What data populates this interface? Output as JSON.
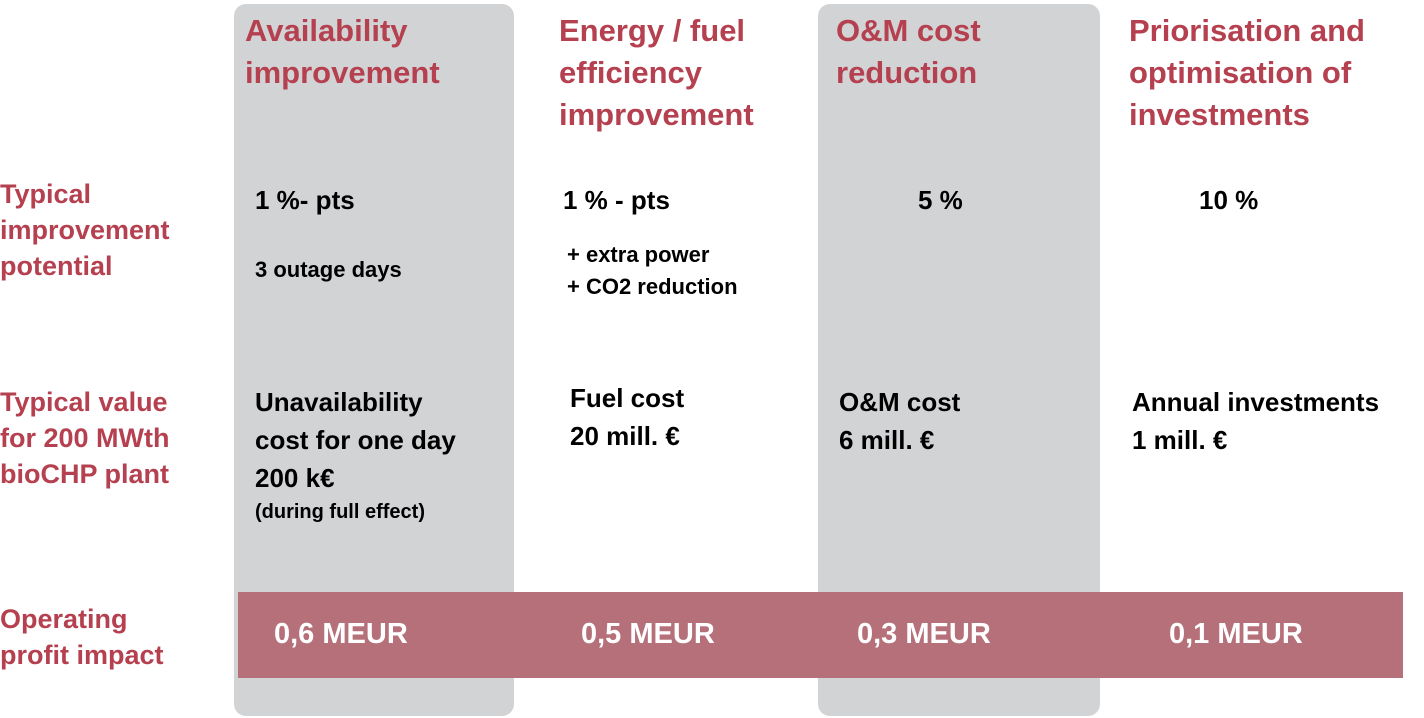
{
  "headers": [
    {
      "lines": [
        "Availability",
        "improvement"
      ]
    },
    {
      "lines": [
        "Energy / fuel",
        "efficiency",
        "improvement"
      ]
    },
    {
      "lines": [
        "O&M cost",
        "reduction"
      ]
    },
    {
      "lines": [
        "Priorisation and",
        "optimisation of",
        "investments"
      ]
    }
  ],
  "row_labels": {
    "potential": [
      "Typical",
      "improvement",
      "potential"
    ],
    "value": [
      "Typical value",
      "for 200 MWth",
      "bioCHP plant"
    ],
    "impact": [
      "Operating",
      "profit impact"
    ]
  },
  "potential": {
    "availability": {
      "main": "1 %- pts",
      "sub": "3 outage days"
    },
    "energy": {
      "main": "1 % - pts",
      "extras": [
        "+ extra power",
        "+ CO2 reduction"
      ]
    },
    "om": {
      "main": "5 %"
    },
    "investments": {
      "main": "10 %"
    }
  },
  "value": {
    "availability": {
      "lines": [
        "Unavailability",
        "cost for one day",
        "200 k€"
      ],
      "note": "(during full effect)"
    },
    "energy": {
      "lines": [
        "Fuel cost",
        "20 mill. €"
      ]
    },
    "om": {
      "lines": [
        "O&M cost",
        "6 mill. €"
      ]
    },
    "investments": {
      "lines": [
        "Annual investments",
        "1 mill. €"
      ]
    }
  },
  "impact": {
    "availability": "0,6 MEUR",
    "energy": "0,5  MEUR",
    "om": "0,3 MEUR",
    "investments": "0,1  MEUR"
  },
  "colors": {
    "accent_text": "#b5404f",
    "impact_bar": "#b5707a",
    "column_highlight": "#d2d3d5"
  }
}
